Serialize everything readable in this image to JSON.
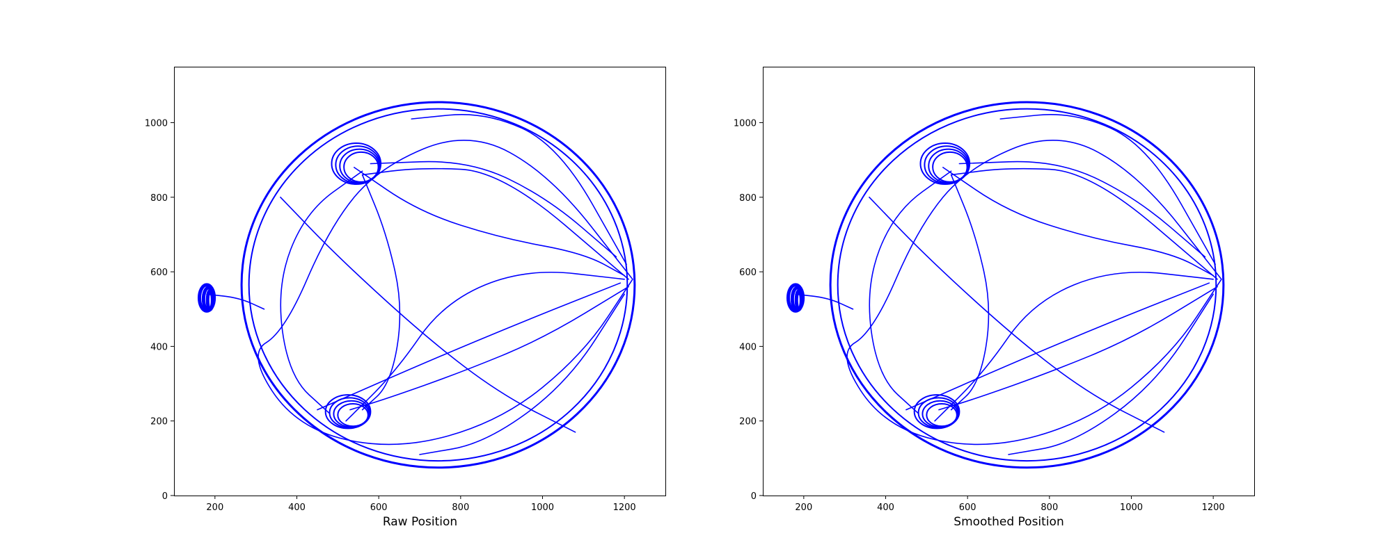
{
  "chart_data": [
    {
      "type": "line",
      "title": "",
      "xlabel": "Raw Position",
      "ylabel": "",
      "xlim": [
        100,
        1300
      ],
      "ylim": [
        0,
        1150
      ],
      "x_ticks": [
        200,
        400,
        600,
        800,
        1000,
        1200
      ],
      "y_ticks": [
        0,
        200,
        400,
        600,
        800,
        1000
      ],
      "grid": false,
      "legend": "none",
      "series_color": "#0000ff",
      "series": [
        {
          "values": [
            [
              1220,
              580
            ],
            [
              1020,
              860
            ],
            [
              820,
              980
            ],
            [
              600,
              880
            ],
            [
              480,
              720
            ],
            [
              370,
              440
            ],
            [
              280,
              380
            ],
            [
              400,
              180
            ],
            [
              640,
              120
            ],
            [
              900,
              200
            ],
            [
              1100,
              380
            ],
            [
              1220,
              580
            ]
          ]
        },
        {
          "values": [
            [
              1210,
              580
            ],
            [
              900,
              870
            ],
            [
              700,
              880
            ],
            [
              560,
              860
            ]
          ]
        },
        {
          "values": [
            [
              1210,
              560
            ],
            [
              1000,
              420
            ],
            [
              800,
              330
            ],
            [
              620,
              260
            ],
            [
              530,
              230
            ]
          ]
        },
        {
          "values": [
            [
              560,
              860
            ],
            [
              620,
              700
            ],
            [
              660,
              500
            ],
            [
              630,
              300
            ],
            [
              560,
              230
            ]
          ]
        },
        {
          "values": [
            [
              560,
              870
            ],
            [
              420,
              760
            ],
            [
              350,
              560
            ],
            [
              380,
              320
            ],
            [
              480,
              220
            ]
          ]
        },
        {
          "values": [
            [
              1205,
              620
            ],
            [
              1040,
              940
            ],
            [
              860,
              1030
            ],
            [
              680,
              1010
            ]
          ]
        },
        {
          "values": [
            [
              1200,
              540
            ],
            [
              1060,
              300
            ],
            [
              860,
              140
            ],
            [
              700,
              110
            ]
          ]
        },
        {
          "values": [
            [
              180,
              540
            ],
            [
              260,
              530
            ],
            [
              320,
              500
            ]
          ]
        },
        {
          "values": [
            [
              1200,
              580
            ],
            [
              960,
              610
            ],
            [
              760,
              520
            ],
            [
              640,
              330
            ],
            [
              520,
              200
            ]
          ]
        },
        {
          "values": [
            [
              540,
              880
            ],
            [
              700,
              760
            ],
            [
              900,
              690
            ],
            [
              1100,
              650
            ],
            [
              1200,
              590
            ]
          ]
        },
        {
          "values": [
            [
              450,
              230
            ],
            [
              720,
              360
            ],
            [
              960,
              470
            ],
            [
              1190,
              570
            ]
          ]
        },
        {
          "values": [
            [
              360,
              800
            ],
            [
              500,
              640
            ],
            [
              720,
              420
            ],
            [
              900,
              270
            ],
            [
              1080,
              170
            ]
          ]
        },
        {
          "values": [
            [
              580,
              890
            ],
            [
              820,
              900
            ],
            [
              1010,
              800
            ],
            [
              1180,
              640
            ]
          ]
        }
      ]
    },
    {
      "type": "line",
      "title": "",
      "xlabel": "Smoothed Position",
      "ylabel": "",
      "xlim": [
        100,
        1300
      ],
      "ylim": [
        0,
        1150
      ],
      "x_ticks": [
        200,
        400,
        600,
        800,
        1000,
        1200
      ],
      "y_ticks": [
        0,
        200,
        400,
        600,
        800,
        1000
      ],
      "grid": false,
      "legend": "none",
      "series_color": "#0000ff",
      "series": [
        {
          "values": [
            [
              1220,
              580
            ],
            [
              1020,
              860
            ],
            [
              820,
              980
            ],
            [
              600,
              880
            ],
            [
              480,
              720
            ],
            [
              370,
              440
            ],
            [
              280,
              380
            ],
            [
              400,
              180
            ],
            [
              640,
              120
            ],
            [
              900,
              200
            ],
            [
              1100,
              380
            ],
            [
              1220,
              580
            ]
          ]
        },
        {
          "values": [
            [
              1210,
              580
            ],
            [
              900,
              870
            ],
            [
              700,
              880
            ],
            [
              560,
              860
            ]
          ]
        },
        {
          "values": [
            [
              1210,
              560
            ],
            [
              1000,
              420
            ],
            [
              800,
              330
            ],
            [
              620,
              260
            ],
            [
              530,
              230
            ]
          ]
        },
        {
          "values": [
            [
              560,
              860
            ],
            [
              620,
              700
            ],
            [
              660,
              500
            ],
            [
              630,
              300
            ],
            [
              560,
              230
            ]
          ]
        },
        {
          "values": [
            [
              560,
              870
            ],
            [
              420,
              760
            ],
            [
              350,
              560
            ],
            [
              380,
              320
            ],
            [
              480,
              220
            ]
          ]
        },
        {
          "values": [
            [
              1205,
              620
            ],
            [
              1040,
              940
            ],
            [
              860,
              1030
            ],
            [
              680,
              1010
            ]
          ]
        },
        {
          "values": [
            [
              1200,
              540
            ],
            [
              1060,
              300
            ],
            [
              860,
              140
            ],
            [
              700,
              110
            ]
          ]
        },
        {
          "values": [
            [
              180,
              540
            ],
            [
              260,
              530
            ],
            [
              320,
              500
            ]
          ]
        },
        {
          "values": [
            [
              1200,
              580
            ],
            [
              960,
              610
            ],
            [
              760,
              520
            ],
            [
              640,
              330
            ],
            [
              520,
              200
            ]
          ]
        },
        {
          "values": [
            [
              540,
              880
            ],
            [
              700,
              760
            ],
            [
              900,
              690
            ],
            [
              1100,
              650
            ],
            [
              1200,
              590
            ]
          ]
        },
        {
          "values": [
            [
              450,
              230
            ],
            [
              720,
              360
            ],
            [
              960,
              470
            ],
            [
              1190,
              570
            ]
          ]
        },
        {
          "values": [
            [
              360,
              800
            ],
            [
              500,
              640
            ],
            [
              720,
              420
            ],
            [
              900,
              270
            ],
            [
              1080,
              170
            ]
          ]
        },
        {
          "values": [
            [
              580,
              890
            ],
            [
              820,
              900
            ],
            [
              1010,
              800
            ],
            [
              1180,
              640
            ]
          ]
        }
      ]
    }
  ]
}
